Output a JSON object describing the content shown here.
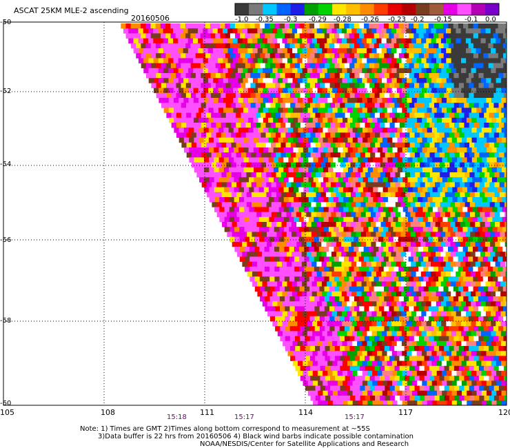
{
  "header": {
    "title": "ASCAT 25KM MLE-2 ascending",
    "date": "20160506"
  },
  "colorbar": {
    "labels": [
      "-1.0",
      "-0.35",
      "-0.3",
      "-0.29",
      "-0.28",
      "-0.26",
      "-0.23",
      "-0.2",
      "-0.15",
      "-0.1",
      "0.0"
    ],
    "colors": [
      "#3a3a3a",
      "#7a7a7a",
      "#00c8ff",
      "#0064ff",
      "#1e1ee6",
      "#00a000",
      "#00d200",
      "#ffe600",
      "#ffbe00",
      "#ff8c00",
      "#ff3c00",
      "#e60000",
      "#b40000",
      "#783c1e",
      "#a05a3c",
      "#e600e6",
      "#ff50ff",
      "#b400b4",
      "#7800c8"
    ]
  },
  "map": {
    "lat_labels": [
      "-50",
      "-52",
      "-54",
      "-56",
      "-58",
      "-60"
    ],
    "lon_labels": [
      "105",
      "108",
      "111",
      "114",
      "117",
      "120"
    ],
    "lon_range": [
      105,
      120
    ],
    "lat_range": [
      -60,
      -50
    ],
    "time_labels": [
      "15:18",
      "15:17",
      "15:17"
    ],
    "time_colors": "#800080",
    "swath_edge": {
      "lon_top": 108.5,
      "lon_bottom": 114.3
    }
  },
  "notes": {
    "line1": "Note: 1) Times are GMT 2)Times along bottom correspond to measurement at ~55S",
    "line2": "3)Data buffer is 22 hrs from 20160506 4) Black wind barbs indicate possible contamination",
    "line3": "NOAA/NESDIS/Center for Satellite Applications and Research"
  }
}
